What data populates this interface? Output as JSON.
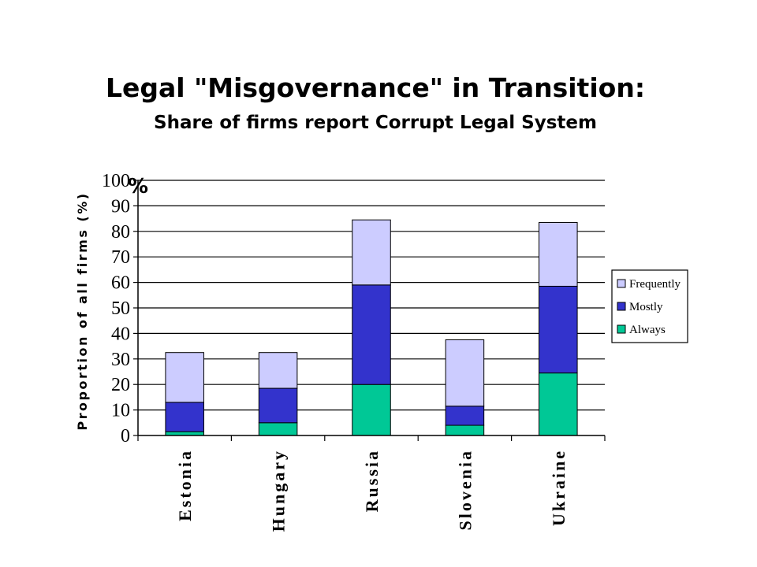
{
  "chart_data": {
    "type": "bar",
    "stacked": true,
    "title": "Legal \"Misgovernance\" in Transition:",
    "subtitle": "Share of firms report Corrupt Legal System",
    "ylabel": "Proportion of all firms (%)",
    "ylim": [
      0,
      100
    ],
    "yticks": [
      "0",
      "10",
      "20",
      "30",
      "40",
      "50",
      "60",
      "70",
      "80",
      "90",
      "100"
    ],
    "y_unit_mark": "%",
    "grid": true,
    "legend_position": "right",
    "categories": [
      "Estonia",
      "Hungary",
      "Russia",
      "Slovenia",
      "Ukraine"
    ],
    "series": [
      {
        "name": "Always",
        "values": [
          1.5,
          5,
          20,
          4,
          24.5
        ],
        "color": "#00c896"
      },
      {
        "name": "Mostly",
        "values": [
          11.5,
          13.5,
          39,
          7.5,
          34
        ],
        "color": "#3333cc"
      },
      {
        "name": "Frequently",
        "values": [
          19.5,
          14,
          25.5,
          26,
          25
        ],
        "color": "#ccccff"
      }
    ],
    "legend_order": [
      "Frequently",
      "Mostly",
      "Always"
    ]
  }
}
